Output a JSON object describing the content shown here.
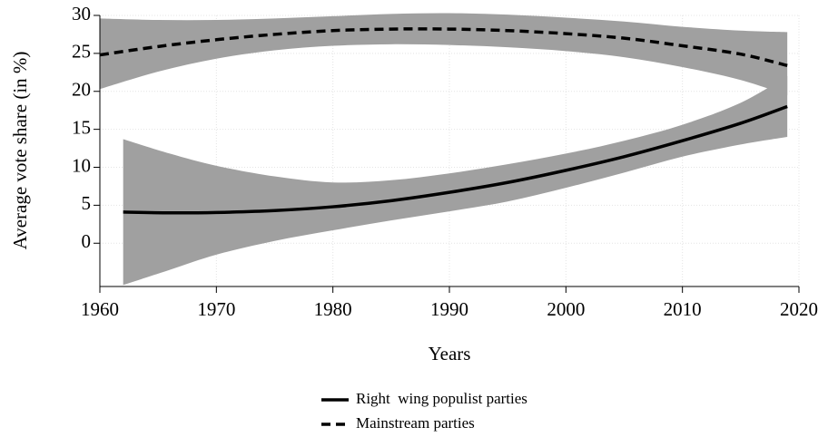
{
  "chart_data": {
    "type": "line",
    "xlabel": "Years",
    "ylabel": "Average vote share (in %)",
    "xlim": [
      1960,
      2020
    ],
    "xticks": [
      1960,
      1970,
      1980,
      1990,
      2000,
      2010,
      2020
    ],
    "ylim": [
      -5.7,
      30
    ],
    "yticks": [
      0,
      5,
      10,
      15,
      20,
      25,
      30
    ],
    "grid": true,
    "legend": "bottom",
    "band_color": "#a0a0a0",
    "series": [
      {
        "name": "Right  wing populist parties",
        "color": "#000000",
        "line_style": "solid",
        "x": [
          1962,
          1966,
          1970,
          1975,
          1980,
          1985,
          1990,
          1995,
          2000,
          2005,
          2010,
          2015,
          2019
        ],
        "values": [
          4.1,
          4.0,
          4.05,
          4.3,
          4.8,
          5.6,
          6.7,
          8.0,
          9.6,
          11.4,
          13.5,
          15.8,
          18.0
        ],
        "upper": [
          13.7,
          11.8,
          10.2,
          8.8,
          8.0,
          8.3,
          9.2,
          10.4,
          11.8,
          13.5,
          15.6,
          18.5,
          22.0
        ],
        "lower": [
          -5.5,
          -3.5,
          -1.5,
          0.3,
          1.7,
          3.0,
          4.2,
          5.5,
          7.3,
          9.3,
          11.4,
          13.0,
          14.0
        ]
      },
      {
        "name": "Mainstream parties",
        "color": "#000000",
        "line_style": "dashed",
        "x": [
          1960,
          1965,
          1970,
          1975,
          1980,
          1985,
          1990,
          1995,
          2000,
          2005,
          2010,
          2015,
          2019
        ],
        "values": [
          24.8,
          25.9,
          26.8,
          27.5,
          28.0,
          28.2,
          28.2,
          28.0,
          27.6,
          27.0,
          26.0,
          24.9,
          23.4
        ],
        "upper": [
          29.6,
          29.4,
          29.4,
          29.6,
          29.9,
          30.2,
          30.3,
          30.1,
          29.7,
          29.2,
          28.5,
          28.0,
          27.8
        ],
        "lower": [
          20.3,
          22.6,
          24.3,
          25.4,
          26.0,
          26.2,
          26.1,
          25.8,
          25.3,
          24.5,
          23.2,
          21.5,
          19.5
        ]
      }
    ]
  }
}
